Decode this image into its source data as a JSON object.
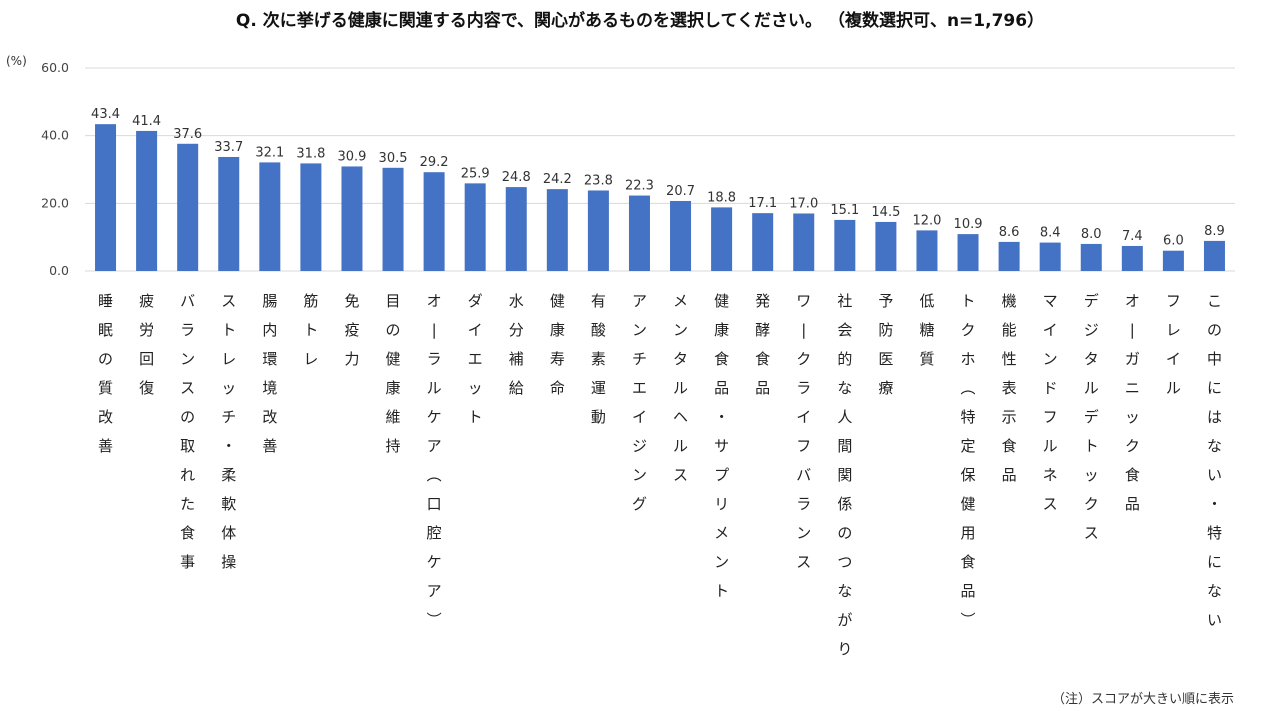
{
  "chart_data": {
    "type": "bar",
    "title": "Q. 次に挙げる健康に関連する内容で、関心があるものを選択してください。 （複数選択可、n=1,796）",
    "ylabel": "(%)",
    "ylim": [
      0,
      60
    ],
    "yticks": [
      "0.0",
      "20.0",
      "40.0",
      "60.0"
    ],
    "grid": true,
    "colors": {
      "bar": "#4472C4",
      "grid": "#D9D9D9"
    },
    "categories": [
      "睡眠の質改善",
      "疲労回復",
      "バランスの取れた食事",
      "ストレッチ・柔軟体操",
      "腸内環境改善",
      "筋トレ",
      "免疫力",
      "目の健康維持",
      "オーラルケア（口腔ケア）",
      "ダイエット",
      "水分補給",
      "健康寿命",
      "有酸素運動",
      "アンチエイジング",
      "メンタルヘルス",
      "健康食品・サプリメント",
      "発酵食品",
      "ワークライフバランス",
      "社会的な人間関係のつながり",
      "予防医療",
      "低糖質",
      "トクホ（特定保健用食品）",
      "機能性表示食品",
      "マインドフルネス",
      "デジタルデトックス",
      "オーガニック食品",
      "フレイル",
      "この中にはない・特にない"
    ],
    "values": [
      43.4,
      41.4,
      37.6,
      33.7,
      32.1,
      31.8,
      30.9,
      30.5,
      29.2,
      25.9,
      24.8,
      24.2,
      23.8,
      22.3,
      20.7,
      18.8,
      17.1,
      17.0,
      15.1,
      14.5,
      12.0,
      10.9,
      8.6,
      8.4,
      8.0,
      7.4,
      6.0,
      8.9
    ],
    "value_labels": [
      "43.4",
      "41.4",
      "37.6",
      "33.7",
      "32.1",
      "31.8",
      "30.9",
      "30.5",
      "29.2",
      "25.9",
      "24.8",
      "24.2",
      "23.8",
      "22.3",
      "20.7",
      "18.8",
      "17.1",
      "17.0",
      "15.1",
      "14.5",
      "12.0",
      "10.9",
      "8.6",
      "8.4",
      "8.0",
      "7.4",
      "6.0",
      "8.9"
    ],
    "footnote": "（注）スコアが大きい順に表示"
  }
}
